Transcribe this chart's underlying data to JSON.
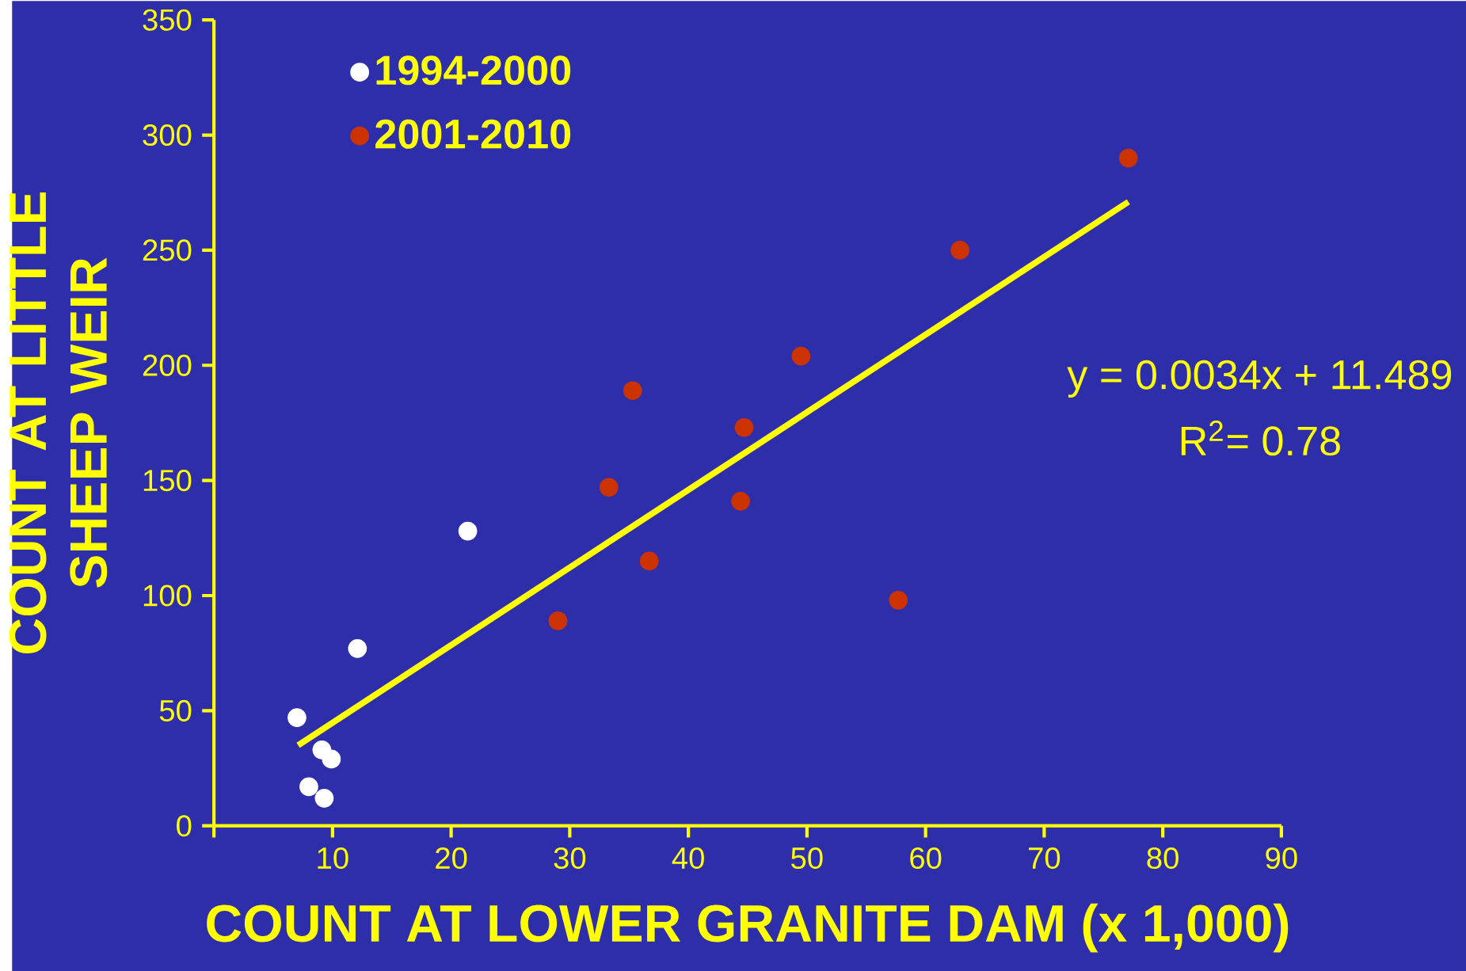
{
  "chart_data": {
    "type": "scatter",
    "xlabel": "COUNT AT LOWER GRANITE DAM (x 1,000)",
    "ylabel": "COUNT  AT LITTLE SHEEP WEIR",
    "xlim": [
      0,
      90
    ],
    "ylim": [
      0,
      350
    ],
    "xticks": [
      {
        "value": 0,
        "label": null
      },
      10,
      20,
      30,
      40,
      50,
      60,
      70,
      80,
      90
    ],
    "yticks": [
      0,
      50,
      100,
      150,
      200,
      250,
      300,
      350
    ],
    "legend": "top left",
    "grid": false,
    "series": [
      {
        "name": "1994-2000",
        "color": "#ffffff",
        "marker": "circle",
        "x": [
          7.0,
          12.1,
          21.4,
          9.1,
          9.9,
          8.0,
          9.3
        ],
        "values": [
          47,
          77,
          128,
          33,
          29,
          17,
          12
        ]
      },
      {
        "name": "2001-2010",
        "color": "#cc3300",
        "marker": "circle",
        "x": [
          77.1,
          62.9,
          49.5,
          35.3,
          44.7,
          33.3,
          44.4,
          36.7,
          29.0,
          57.7
        ],
        "values": [
          290,
          250,
          204,
          189,
          173,
          147,
          141,
          115,
          89,
          98
        ]
      },
      {
        "type": "line",
        "color": "#ffff00",
        "x": [
          7.1,
          77.1
        ],
        "values": [
          35,
          271
        ],
        "marker": "none"
      }
    ],
    "annotations": [
      "y = 0.0034x + 11.489",
      "R$^{2}$= 0.78"
    ]
  }
}
